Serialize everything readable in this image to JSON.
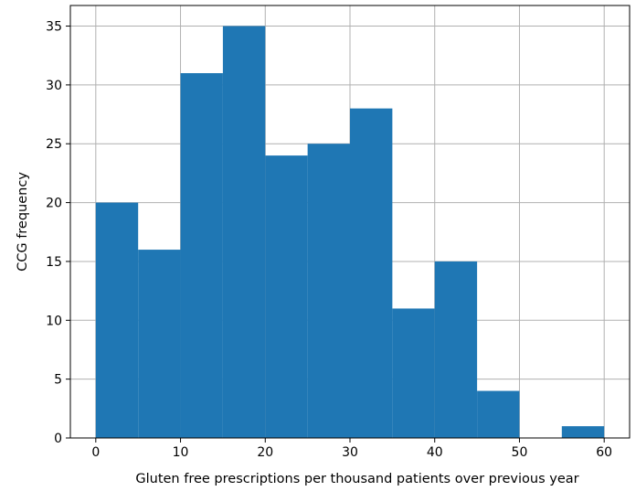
{
  "chart_data": {
    "type": "bar",
    "subtype": "histogram",
    "title": "",
    "xlabel": "Gluten free prescriptions per thousand patients over previous year",
    "ylabel": "CCG frequency",
    "xlim": [
      -3,
      63
    ],
    "ylim": [
      0,
      36.75
    ],
    "grid": true,
    "bar_color": "#1f77b4",
    "grid_color": "#b0b0b0",
    "bins": [
      {
        "start": 0,
        "end": 5,
        "value": 20
      },
      {
        "start": 5,
        "end": 10,
        "value": 16
      },
      {
        "start": 10,
        "end": 15,
        "value": 31
      },
      {
        "start": 15,
        "end": 20,
        "value": 35
      },
      {
        "start": 20,
        "end": 25,
        "value": 24
      },
      {
        "start": 25,
        "end": 30,
        "value": 25
      },
      {
        "start": 30,
        "end": 35,
        "value": 28
      },
      {
        "start": 35,
        "end": 40,
        "value": 11
      },
      {
        "start": 40,
        "end": 45,
        "value": 15
      },
      {
        "start": 45,
        "end": 50,
        "value": 4
      },
      {
        "start": 50,
        "end": 55,
        "value": 0
      },
      {
        "start": 55,
        "end": 60,
        "value": 1
      }
    ],
    "x_ticks": [
      {
        "value": 0,
        "label": "0"
      },
      {
        "value": 10,
        "label": "10"
      },
      {
        "value": 20,
        "label": "20"
      },
      {
        "value": 30,
        "label": "30"
      },
      {
        "value": 40,
        "label": "40"
      },
      {
        "value": 50,
        "label": "50"
      },
      {
        "value": 60,
        "label": "60"
      }
    ],
    "y_ticks": [
      {
        "value": 0,
        "label": "0"
      },
      {
        "value": 5,
        "label": "5"
      },
      {
        "value": 10,
        "label": "10"
      },
      {
        "value": 15,
        "label": "15"
      },
      {
        "value": 20,
        "label": "20"
      },
      {
        "value": 25,
        "label": "25"
      },
      {
        "value": 30,
        "label": "30"
      },
      {
        "value": 35,
        "label": "35"
      }
    ]
  }
}
